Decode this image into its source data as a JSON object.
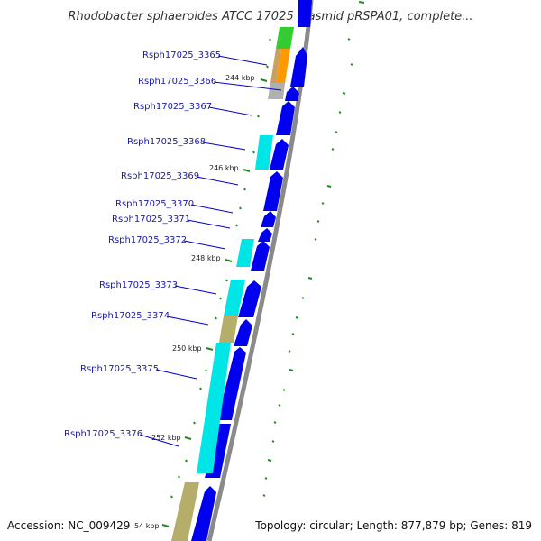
{
  "title": "Rhodobacter sphaeroides ATCC 17025 plasmid pRSPA01, complete...",
  "footer": {
    "accession": "Accession: NC_009429",
    "summary": "Topology: circular; Length: 877,879 bp; Genes: 819"
  },
  "genes": [
    {
      "label": "Rsph17025_3365"
    },
    {
      "label": "Rsph17025_3366"
    },
    {
      "label": "Rsph17025_3367"
    },
    {
      "label": "Rsph17025_3368"
    },
    {
      "label": "Rsph17025_3369"
    },
    {
      "label": "Rsph17025_3370"
    },
    {
      "label": "Rsph17025_3371"
    },
    {
      "label": "Rsph17025_3372"
    },
    {
      "label": "Rsph17025_3373"
    },
    {
      "label": "Rsph17025_3374"
    },
    {
      "label": "Rsph17025_3375"
    },
    {
      "label": "Rsph17025_3376"
    }
  ],
  "kbp_ticks": [
    "244 kbp",
    "246 kbp",
    "248 kbp",
    "250 kbp",
    "252 kbp",
    "54 kbp"
  ],
  "colors": {
    "cds": "#0000ee",
    "cyan": "#00e5e5",
    "khaki": "#b5ad6a",
    "green": "#33cc33",
    "orange": "#ff9900",
    "tan": "#c8a060",
    "grey": "#b0b0b0",
    "backbone": "#888888",
    "tick": "#1f8a1f",
    "label_line": "#0000cc"
  }
}
